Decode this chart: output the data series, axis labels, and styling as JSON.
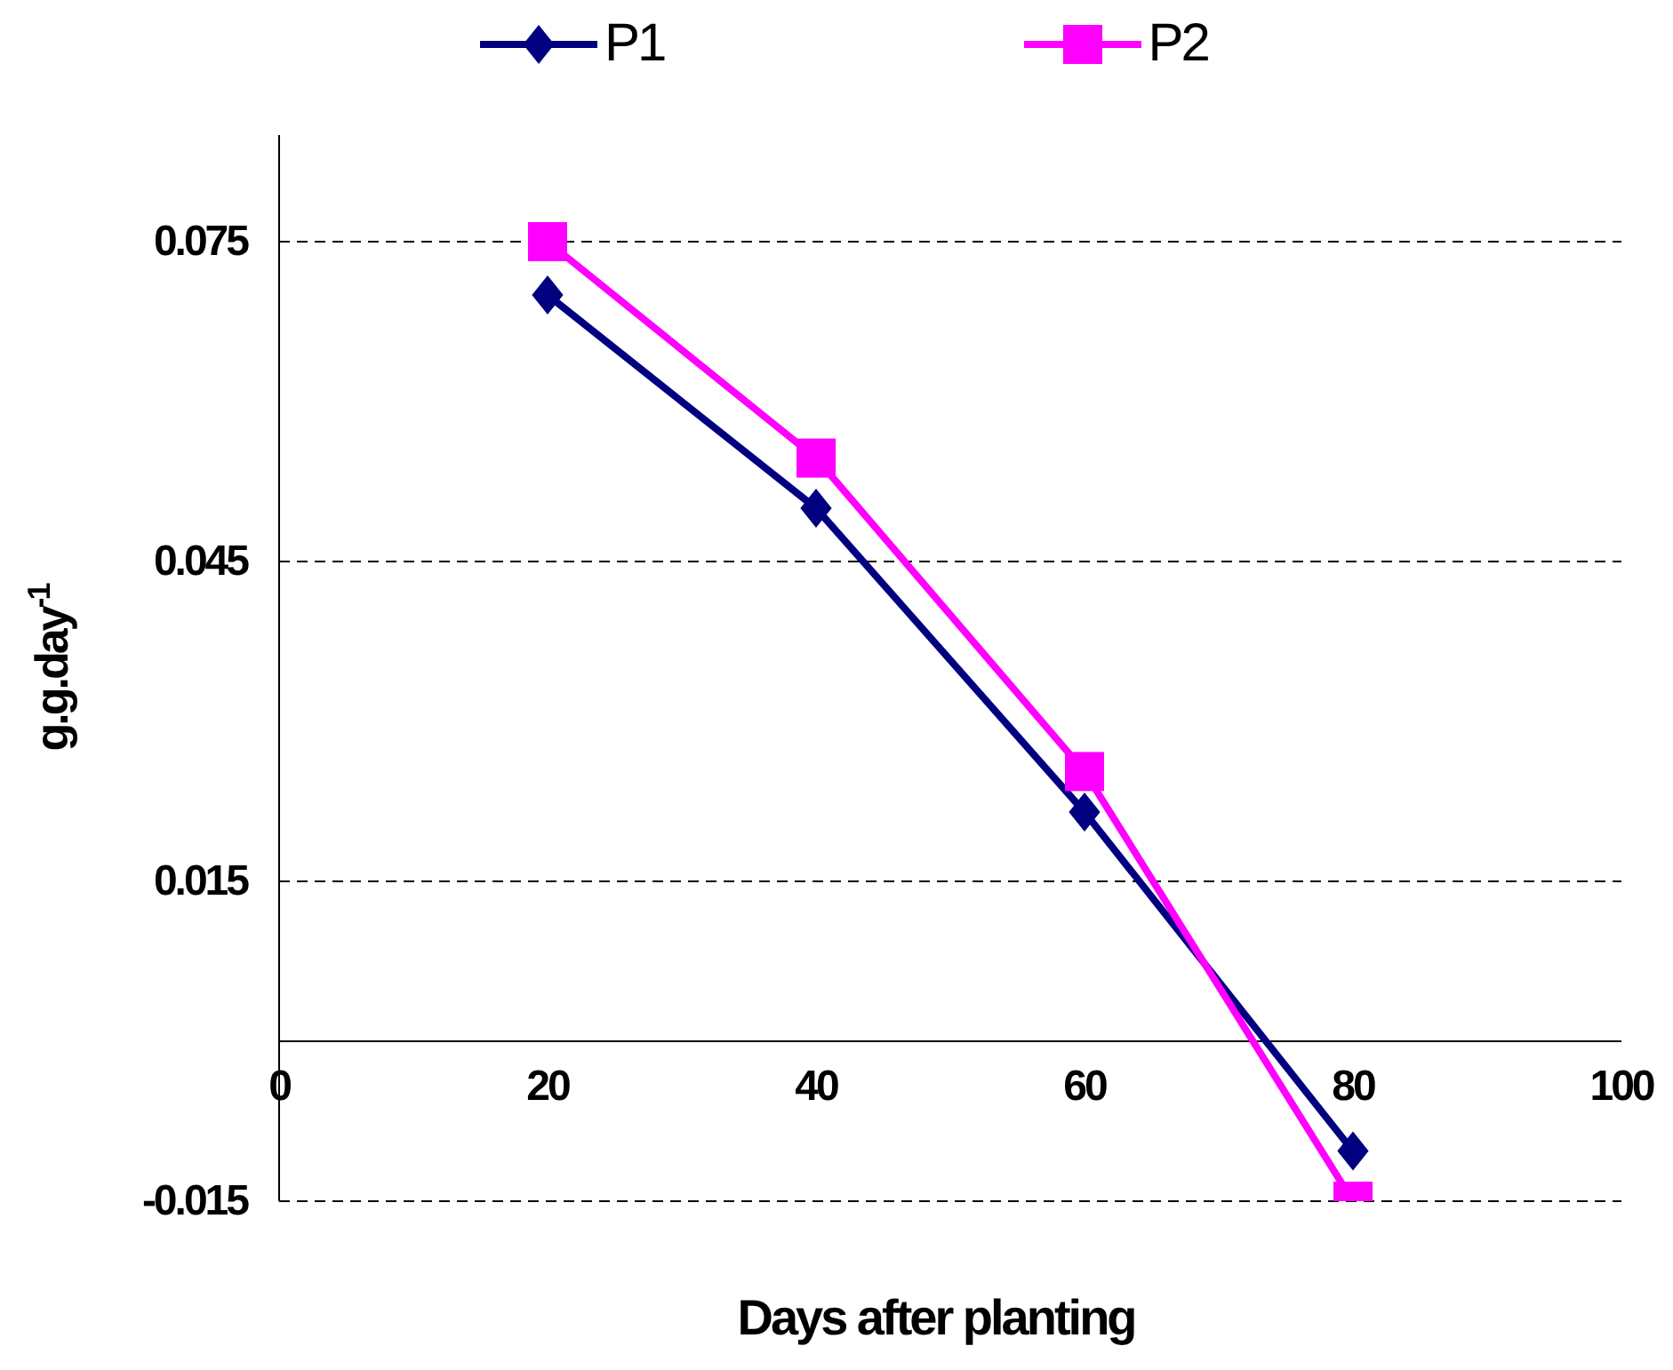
{
  "chart_data": {
    "type": "line",
    "xlabel": "Days after planting",
    "ylabel": "g.g.day$^{-1}$",
    "x": [
      20,
      40,
      60,
      80
    ],
    "series": [
      {
        "name": "P1",
        "color": "#000080",
        "marker": "diamond",
        "values": [
          0.07,
          0.05,
          0.0215,
          -0.0103
        ]
      },
      {
        "name": "P2",
        "color": "#ff00ff",
        "marker": "square",
        "values": [
          0.075,
          0.0547,
          0.0253,
          -0.015
        ]
      }
    ],
    "xlim": [
      0,
      100
    ],
    "xticks": [
      0,
      20,
      40,
      60,
      80,
      100
    ],
    "ylim": [
      -0.015,
      0.085
    ],
    "yticks": [
      -0.015,
      0.015,
      0.045,
      0.075
    ],
    "grid": "y",
    "legend": "top",
    "line_style": "solid"
  }
}
